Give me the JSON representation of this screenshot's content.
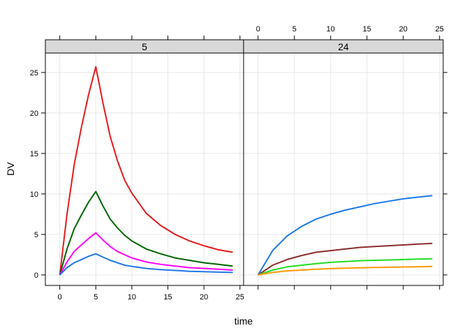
{
  "chart_data": {
    "type": "line",
    "xlabel": "time",
    "ylabel": "DV",
    "xlim": [
      -2,
      25.5
    ],
    "ylim": [
      -1.3,
      27.4
    ],
    "x_ticks": [
      0,
      5,
      10,
      15,
      20,
      25
    ],
    "y_ticks": [
      0,
      5,
      10,
      15,
      20,
      25
    ],
    "grid": true,
    "panels": [
      {
        "strip": "5",
        "series": [
          {
            "color": "#e41a1c",
            "x": [
              0,
              1,
              2,
              3,
              4,
              5,
              6,
              7,
              8,
              9,
              10,
              12,
              14,
              16,
              18,
              20,
              22,
              24
            ],
            "y": [
              0,
              7.5,
              13.6,
              18.2,
              22.3,
              25.7,
              21.2,
              17.1,
              14.1,
              11.7,
              10.1,
              7.6,
              6.1,
              5.0,
              4.2,
              3.6,
              3.1,
              2.8
            ]
          },
          {
            "color": "#006400",
            "x": [
              0,
              1,
              2,
              3,
              4,
              5,
              6,
              7,
              8,
              9,
              10,
              12,
              14,
              16,
              18,
              20,
              22,
              24
            ],
            "y": [
              0,
              3.2,
              5.7,
              7.4,
              9.0,
              10.3,
              8.5,
              6.9,
              5.8,
              4.9,
              4.2,
              3.2,
              2.6,
              2.1,
              1.8,
              1.5,
              1.3,
              1.1
            ]
          },
          {
            "color": "#ff00ff",
            "x": [
              0,
              1,
              2,
              3,
              4,
              5,
              6,
              7,
              8,
              9,
              10,
              12,
              14,
              16,
              18,
              20,
              22,
              24
            ],
            "y": [
              0,
              1.6,
              2.9,
              3.7,
              4.5,
              5.2,
              4.3,
              3.5,
              2.9,
              2.5,
              2.1,
              1.6,
              1.3,
              1.1,
              0.9,
              0.8,
              0.7,
              0.6
            ]
          },
          {
            "color": "#1e78e6",
            "x": [
              0,
              1,
              2,
              3,
              4,
              5,
              6,
              7,
              8,
              9,
              10,
              12,
              14,
              16,
              18,
              20,
              22,
              24
            ],
            "y": [
              0,
              0.9,
              1.5,
              1.9,
              2.3,
              2.6,
              2.2,
              1.8,
              1.5,
              1.2,
              1.05,
              0.8,
              0.65,
              0.55,
              0.45,
              0.4,
              0.35,
              0.3
            ]
          }
        ]
      },
      {
        "strip": "24",
        "series": [
          {
            "color": "#1e78e6",
            "x": [
              0,
              2,
              4,
              6,
              8,
              10,
              12,
              14,
              16,
              18,
              20,
              22,
              24
            ],
            "y": [
              0,
              3.0,
              4.8,
              6.0,
              6.9,
              7.5,
              8.0,
              8.4,
              8.8,
              9.1,
              9.4,
              9.6,
              9.8
            ]
          },
          {
            "color": "#8b2c2c",
            "x": [
              0,
              2,
              4,
              6,
              8,
              10,
              12,
              14,
              16,
              18,
              20,
              22,
              24
            ],
            "y": [
              0,
              1.2,
              1.9,
              2.4,
              2.8,
              3.0,
              3.2,
              3.4,
              3.5,
              3.6,
              3.7,
              3.8,
              3.9
            ]
          },
          {
            "color": "#22dd22",
            "x": [
              0,
              2,
              4,
              6,
              8,
              10,
              12,
              14,
              16,
              18,
              20,
              22,
              24
            ],
            "y": [
              0,
              0.6,
              1.0,
              1.2,
              1.4,
              1.55,
              1.65,
              1.75,
              1.8,
              1.85,
              1.9,
              1.95,
              2.0
            ]
          },
          {
            "color": "#ff9900",
            "x": [
              0,
              2,
              4,
              6,
              8,
              10,
              12,
              14,
              16,
              18,
              20,
              22,
              24
            ],
            "y": [
              0,
              0.3,
              0.5,
              0.6,
              0.7,
              0.78,
              0.83,
              0.88,
              0.92,
              0.95,
              0.98,
              1.0,
              1.05
            ]
          }
        ]
      }
    ]
  }
}
